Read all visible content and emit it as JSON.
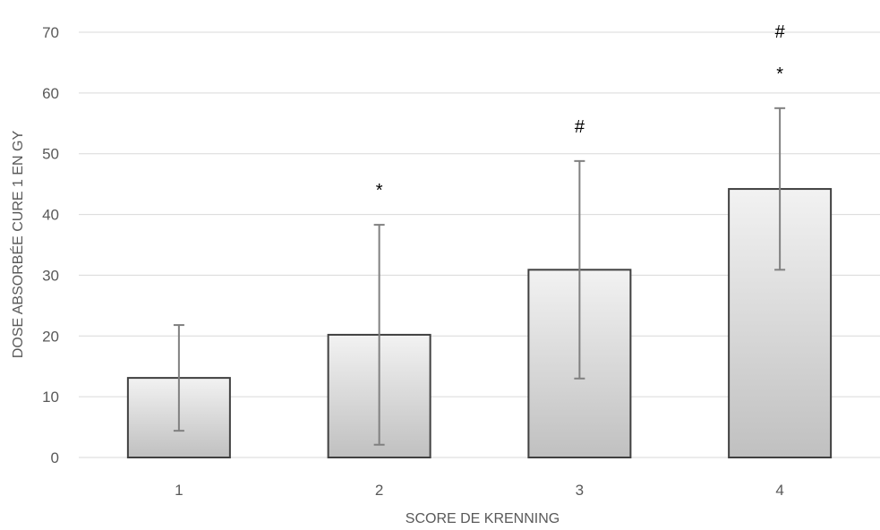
{
  "chart_data": {
    "type": "bar",
    "title": "",
    "xlabel": "SCORE DE KRENNING",
    "ylabel": "DOSE ABSORBÉE CURE 1 EN GY",
    "categories": [
      "1",
      "2",
      "3",
      "4"
    ],
    "values": [
      13.1,
      20.2,
      30.9,
      44.2
    ],
    "error_low": [
      4.4,
      2.1,
      13.0,
      30.9
    ],
    "error_high": [
      21.8,
      38.3,
      48.8,
      57.5
    ],
    "ylim": [
      0,
      70
    ],
    "yticks": [
      "0",
      "10",
      "20",
      "30",
      "40",
      "50",
      "60",
      "70"
    ],
    "grid": true,
    "legend": "none",
    "annotations": [
      {
        "category": "2",
        "symbols": [
          "*"
        ]
      },
      {
        "category": "3",
        "symbols": [
          "#"
        ]
      },
      {
        "category": "4",
        "symbols": [
          "#",
          "*"
        ]
      }
    ],
    "colors": {
      "bar_top": "#f2f2f2",
      "bar_bottom": "#c0c0c0",
      "bar_border": "#404040",
      "error_bar": "#808080",
      "grid": "#d9d9d9"
    }
  }
}
